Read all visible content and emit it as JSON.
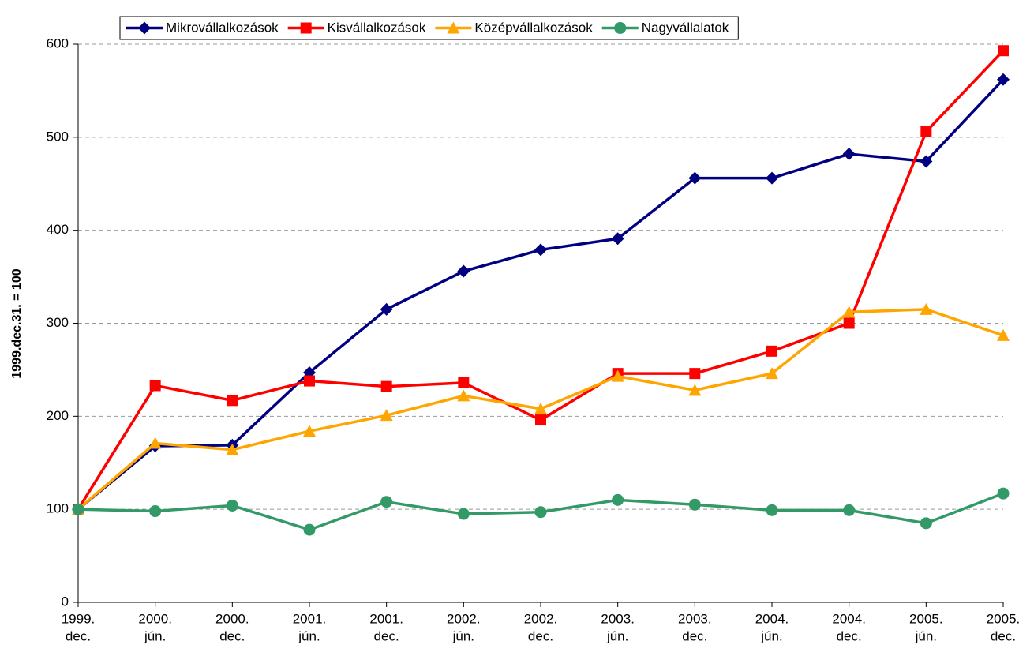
{
  "chart_data": {
    "type": "line",
    "y_label": "1999.dec.31. = 100",
    "categories": [
      [
        "1999.",
        "dec."
      ],
      [
        "2000.",
        "jún."
      ],
      [
        "2000.",
        "dec."
      ],
      [
        "2001.",
        "jún."
      ],
      [
        "2001.",
        "dec."
      ],
      [
        "2002.",
        "jún."
      ],
      [
        "2002.",
        "dec."
      ],
      [
        "2003.",
        "jún."
      ],
      [
        "2003.",
        "dec."
      ],
      [
        "2004.",
        "jún."
      ],
      [
        "2004.",
        "dec."
      ],
      [
        "2005.",
        "jún."
      ],
      [
        "2005.",
        "dec."
      ]
    ],
    "series": [
      {
        "name": "Mikrovállalkozások",
        "color": "#000080",
        "marker": "diamond",
        "values": [
          100,
          168,
          169,
          247,
          315,
          356,
          379,
          391,
          456,
          456,
          482,
          474,
          562
        ]
      },
      {
        "name": "Kisvállalkozások",
        "color": "#ff0000",
        "marker": "square",
        "values": [
          100,
          233,
          217,
          238,
          232,
          236,
          196,
          246,
          246,
          270,
          300,
          506,
          593
        ]
      },
      {
        "name": "Középvállalkozások",
        "color": "#ffa500",
        "marker": "triangle",
        "values": [
          100,
          171,
          164,
          184,
          201,
          222,
          208,
          243,
          228,
          246,
          312,
          315,
          287
        ]
      },
      {
        "name": "Nagyvállalatok",
        "color": "#339966",
        "marker": "circle",
        "values": [
          100,
          98,
          104,
          78,
          108,
          95,
          97,
          110,
          105,
          99,
          99,
          85,
          117
        ]
      }
    ],
    "ylim": [
      0,
      600
    ],
    "yticks": [
      0,
      100,
      200,
      300,
      400,
      500,
      600
    ],
    "grid": true,
    "legend": "top"
  }
}
